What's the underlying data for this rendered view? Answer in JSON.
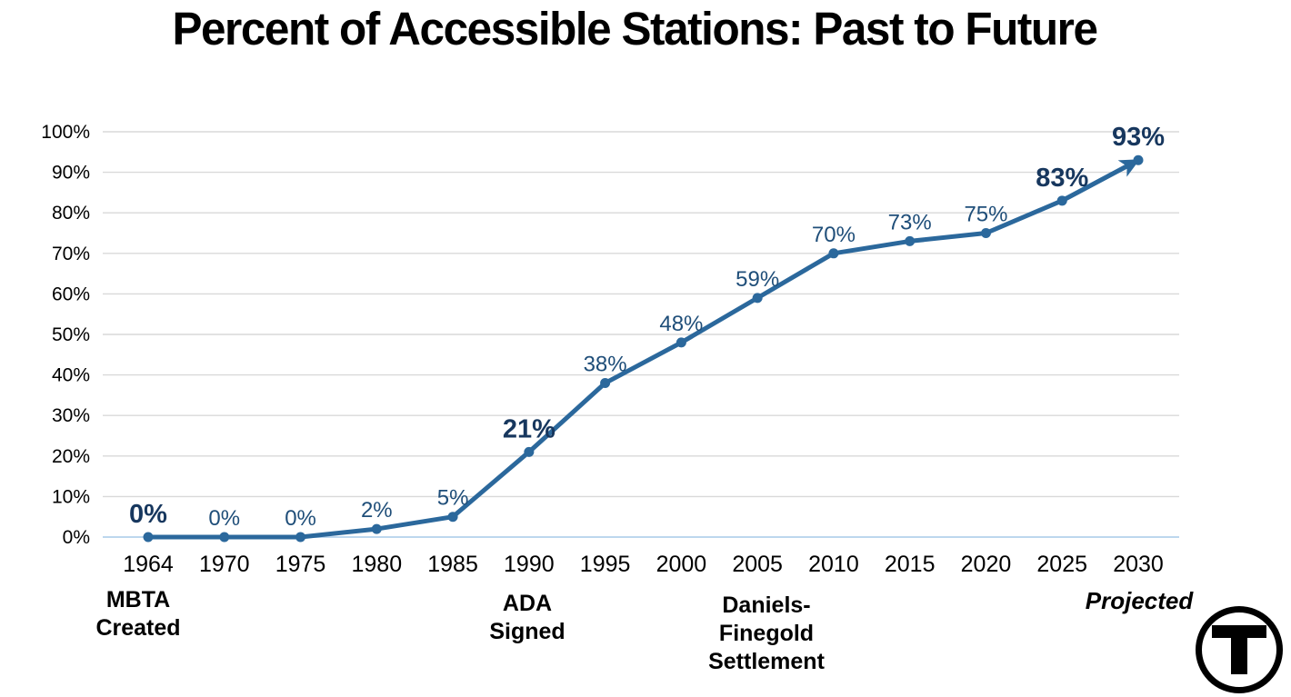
{
  "title": "Percent of Accessible Stations: Past to Future",
  "chart_data": {
    "type": "line",
    "x": [
      "1964",
      "1970",
      "1975",
      "1980",
      "1985",
      "1990",
      "1995",
      "2000",
      "2005",
      "2010",
      "2015",
      "2020",
      "2025",
      "2030"
    ],
    "values": [
      0,
      0,
      0,
      2,
      5,
      21,
      38,
      48,
      59,
      70,
      73,
      75,
      83,
      93
    ],
    "point_labels": [
      "0%",
      "0%",
      "0%",
      "2%",
      "5%",
      "21%",
      "38%",
      "48%",
      "59%",
      "70%",
      "73%",
      "75%",
      "83%",
      "93%"
    ],
    "bold_points": [
      true,
      false,
      false,
      false,
      false,
      true,
      false,
      false,
      false,
      false,
      false,
      false,
      true,
      true
    ],
    "y_ticks": [
      "0%",
      "10%",
      "20%",
      "30%",
      "40%",
      "50%",
      "60%",
      "70%",
      "80%",
      "90%",
      "100%"
    ],
    "ylim": [
      0,
      100
    ],
    "grid": true,
    "legend": "none",
    "arrow_on_last_segment": true,
    "colors": {
      "line": "#2B689C",
      "marker": "#2B689C",
      "label_regular": "#1F4E79",
      "label_bold": "#17375E",
      "gridline": "#D9D9D9",
      "baseline": "#BDD7EE",
      "axis_text": "#000000"
    }
  },
  "annotations": [
    {
      "text": "MBTA\nCreated",
      "style": "bold"
    },
    {
      "text": "ADA\nSigned",
      "style": "bold"
    },
    {
      "text": "Daniels-\nFinegold\nSettlement",
      "style": "bold"
    },
    {
      "text": "Projected",
      "style": "bold-italic"
    }
  ],
  "logo": {
    "letter": "T",
    "alt": "MBTA logo"
  }
}
